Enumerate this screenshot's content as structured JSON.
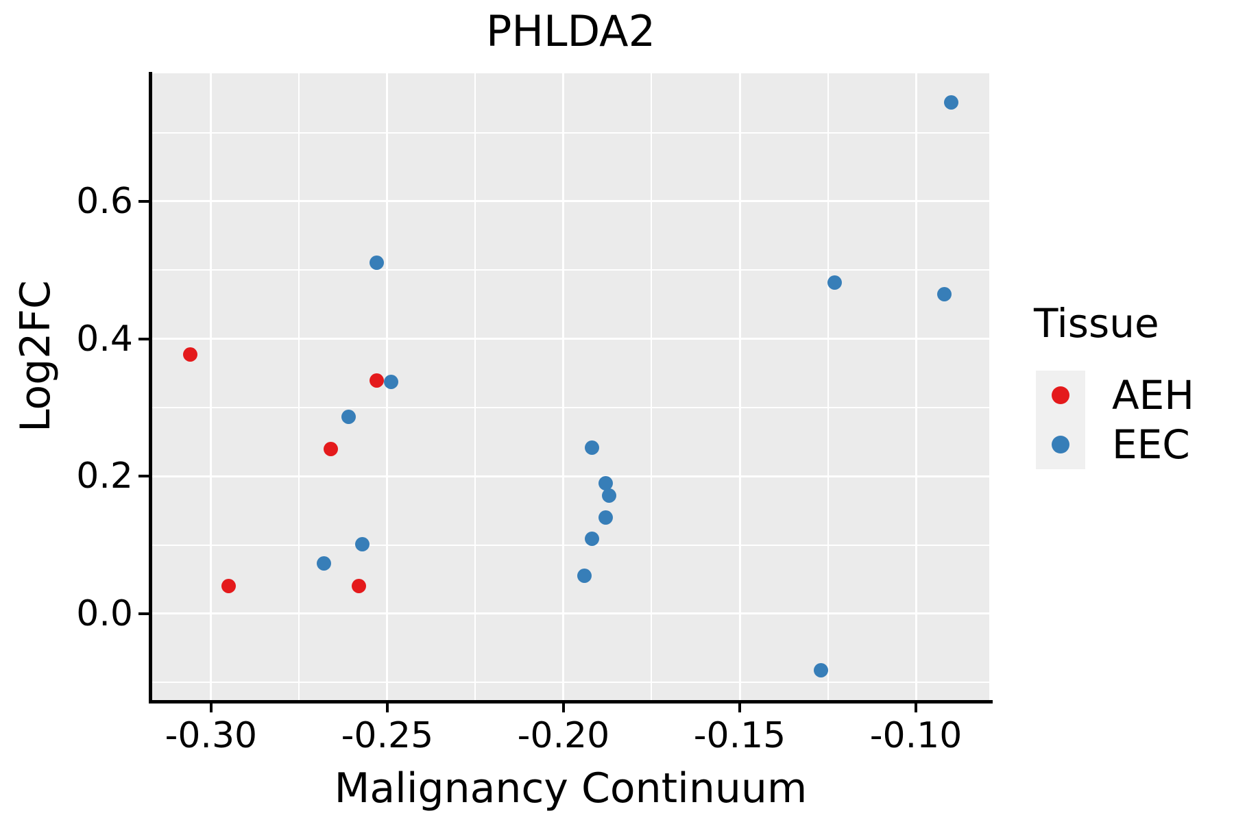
{
  "title": "PHLDA2",
  "legend": {
    "title": "Tissue",
    "position": "right",
    "items": [
      {
        "label": "AEH",
        "color": "#E41A1C"
      },
      {
        "label": "EEC",
        "color": "#377EB8"
      }
    ]
  },
  "colors": {
    "aeh": "#E41A1C",
    "eec": "#377EB8",
    "panel_bg": "#EBEBEB",
    "grid": "#FFFFFF",
    "axis": "#000000",
    "legend_key_bg": "#F0F0F0",
    "text": "#000000"
  },
  "chart_data": {
    "type": "scatter",
    "title": "PHLDA2",
    "xlabel": "Malignancy Continuum",
    "ylabel": "Log2FC",
    "grid": true,
    "legend_position": "right",
    "xlim": [
      -0.3167,
      -0.0792
    ],
    "ylim": [
      -0.1256,
      0.7862
    ],
    "x_ticks": {
      "values": [
        -0.3,
        -0.25,
        -0.2,
        -0.15,
        -0.1
      ],
      "labels": [
        "-0.30",
        "-0.25",
        "-0.20",
        "-0.15",
        "-0.10"
      ],
      "minor": [
        -0.275,
        -0.225,
        -0.175,
        -0.125
      ]
    },
    "y_ticks": {
      "values": [
        0.0,
        0.2,
        0.4,
        0.6
      ],
      "labels": [
        "0.0",
        "0.2",
        "0.4",
        "0.6"
      ],
      "minor": [
        -0.1,
        0.1,
        0.3,
        0.5,
        0.7
      ]
    },
    "series": [
      {
        "name": "AEH",
        "color": "#E41A1C",
        "points": [
          [
            -0.306,
            0.377
          ],
          [
            -0.295,
            0.04
          ],
          [
            -0.266,
            0.24
          ],
          [
            -0.258,
            0.04
          ],
          [
            -0.253,
            0.339
          ]
        ]
      },
      {
        "name": "EEC",
        "color": "#377EB8",
        "points": [
          [
            -0.253,
            0.511
          ],
          [
            -0.249,
            0.337
          ],
          [
            -0.261,
            0.286
          ],
          [
            -0.257,
            0.101
          ],
          [
            -0.268,
            0.073
          ],
          [
            -0.192,
            0.242
          ],
          [
            -0.188,
            0.19
          ],
          [
            -0.187,
            0.172
          ],
          [
            -0.188,
            0.14
          ],
          [
            -0.192,
            0.109
          ],
          [
            -0.194,
            0.055
          ],
          [
            -0.123,
            0.482
          ],
          [
            -0.09,
            0.744
          ],
          [
            -0.092,
            0.465
          ],
          [
            -0.127,
            -0.082
          ]
        ]
      }
    ]
  }
}
